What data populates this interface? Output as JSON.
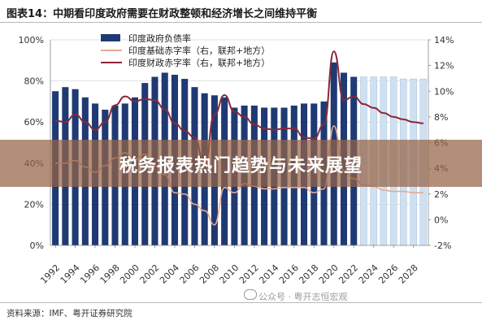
{
  "header": {
    "title": "图表14：中期看印度政府需要在财政整顿和经济增长之间维持平衡"
  },
  "footer": {
    "source": "资料来源：IMF、粤开证券研究院"
  },
  "banner": {
    "text": "税务报表热门趋势与未来展望"
  },
  "watermark": {
    "text": "公众号 · 粤开志恒宏观"
  },
  "chart_data": {
    "type": "bar",
    "x": [
      1992,
      1993,
      1994,
      1995,
      1996,
      1997,
      1998,
      1999,
      2000,
      2001,
      2002,
      2003,
      2004,
      2005,
      2006,
      2007,
      2008,
      2009,
      2010,
      2011,
      2012,
      2013,
      2014,
      2015,
      2016,
      2017,
      2018,
      2019,
      2020,
      2021,
      2022,
      2023,
      2024,
      2025,
      2026,
      2027,
      2028,
      2029
    ],
    "x_tick_labels": [
      "1992",
      "1994",
      "1996",
      "1998",
      "2000",
      "2002",
      "2004",
      "2006",
      "2008",
      "2010",
      "2012",
      "2014",
      "2016",
      "2018",
      "2020",
      "2022",
      "2024",
      "2026",
      "2028"
    ],
    "y_left": {
      "range": [
        0,
        100
      ],
      "ticks": [
        "0%",
        "20%",
        "40%",
        "60%",
        "80%",
        "100%"
      ]
    },
    "y_right": {
      "range": [
        -2,
        14
      ],
      "ticks": [
        "-2%",
        "0%",
        "2%",
        "4%",
        "6%",
        "8%",
        "10%",
        "12%",
        "14%"
      ]
    },
    "forecast_from": 2023,
    "legend_position": "top-left",
    "series": [
      {
        "name": "印度政府负债率",
        "axis": "left",
        "kind": "bar",
        "color": "#1f3a73",
        "forecast_color": "#cfe0f0",
        "values": [
          75,
          77,
          76,
          72,
          69,
          66,
          68,
          69,
          72,
          79,
          82,
          84,
          83,
          81,
          77,
          74,
          73,
          72,
          67,
          68,
          68,
          67,
          67,
          67,
          68,
          69,
          69,
          70,
          89,
          84,
          82,
          82,
          82,
          82,
          82,
          81,
          81,
          81
        ]
      },
      {
        "name": "印度基础赤字率（右，联邦+地方）",
        "axis": "right",
        "kind": "line",
        "color": "#e8a890",
        "values": [
          4.4,
          4.4,
          4.6,
          4.1,
          3.7,
          4.2,
          4.8,
          5.2,
          4.7,
          5.1,
          4.2,
          3.5,
          2.1,
          2.0,
          1.2,
          0.7,
          -0.4,
          2.5,
          2.1,
          2.8,
          2.6,
          2.4,
          2.4,
          2.5,
          2.5,
          2.5,
          2.1,
          2.4,
          7.3,
          3.8,
          3.2,
          2.7,
          2.6,
          2.3,
          2.2,
          2.2,
          2.1,
          2.1
        ]
      },
      {
        "name": "印度财政赤字率（右，联邦+地方）",
        "axis": "right",
        "kind": "line",
        "color": "#8a2738",
        "values": [
          7.7,
          7.6,
          8.2,
          7.6,
          7.0,
          7.6,
          8.9,
          9.6,
          9.2,
          9.4,
          9.3,
          8.6,
          7.5,
          6.9,
          6.4,
          4.2,
          8.2,
          9.7,
          8.4,
          8.0,
          7.4,
          7.1,
          7.0,
          7.1,
          7.1,
          6.4,
          6.3,
          7.4,
          13.1,
          9.3,
          9.6,
          9.0,
          8.7,
          8.3,
          8.0,
          7.8,
          7.6,
          7.5
        ]
      }
    ]
  }
}
